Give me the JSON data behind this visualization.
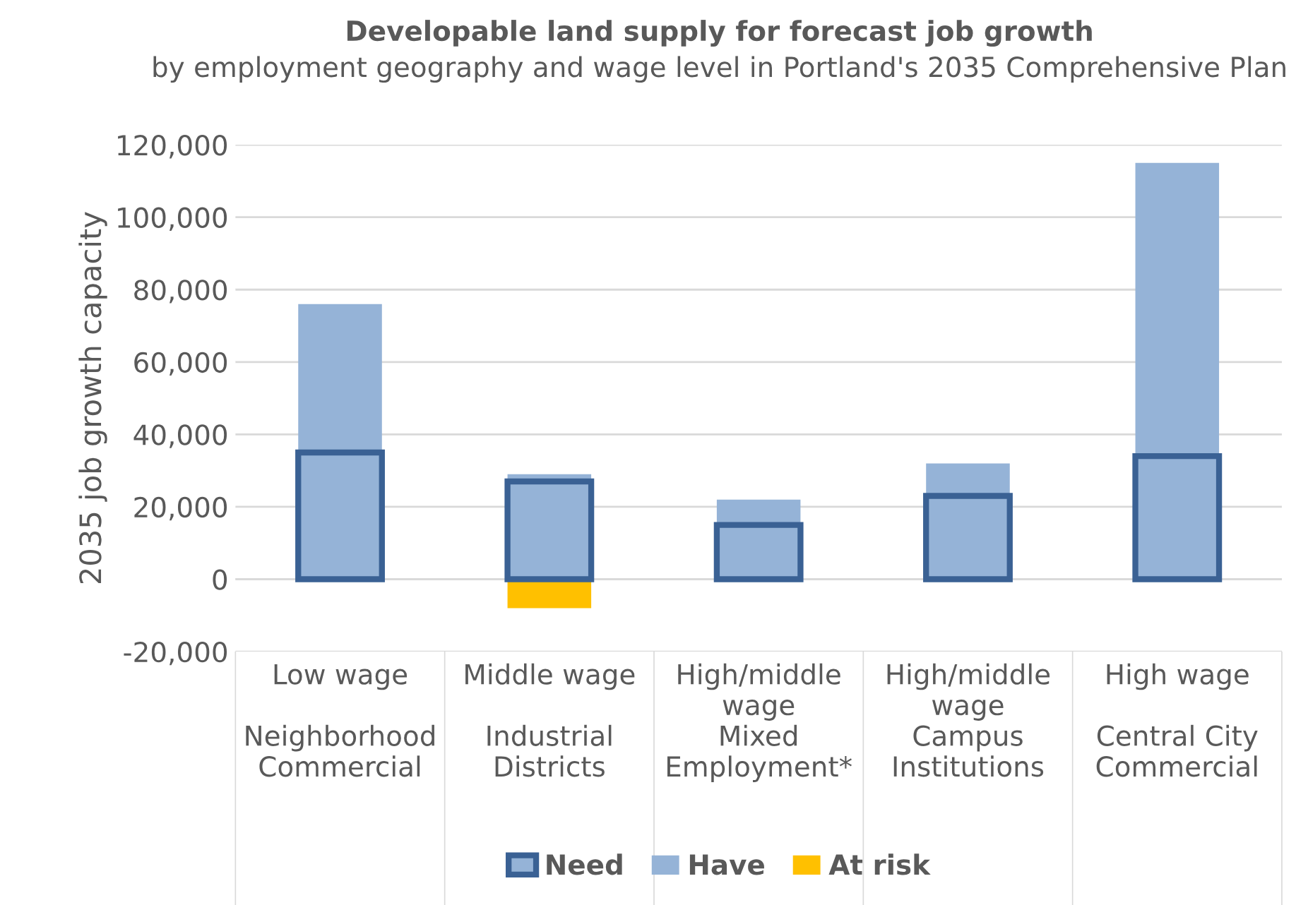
{
  "chart_data": {
    "type": "bar",
    "title": "Developable land supply for forecast job growth",
    "subtitle": "by employment geography and wage level in Portland's 2035 Comprehensive Plan",
    "ylabel": "2035 job growth capacity",
    "categories": [
      "Low wage\n\nNeighborhood\nCommercial",
      "Middle wage\n\nIndustrial\nDistricts",
      "High/middle\nwage\nMixed\nEmployment*",
      "High/middle\nwage\nCampus\nInstitutions",
      "High wage\n\nCentral City\nCommercial"
    ],
    "series": [
      {
        "name": "Need",
        "color": "#3a6194",
        "values": [
          35000,
          27000,
          15000,
          23000,
          34000
        ]
      },
      {
        "name": "Have",
        "color": "#95b3d7",
        "values": [
          76000,
          29000,
          22000,
          32000,
          115000
        ]
      },
      {
        "name": "At risk",
        "color": "#ffc000",
        "values": [
          null,
          -8000,
          null,
          null,
          null
        ]
      }
    ],
    "ylim": [
      -20000,
      120000
    ],
    "yticks": [
      {
        "value": -20000,
        "label": "-20,000"
      },
      0,
      {
        "value": 20000,
        "label": "20,000"
      },
      {
        "value": 40000,
        "label": "40,000"
      },
      {
        "value": 60000,
        "label": "60,000"
      },
      {
        "value": 80000,
        "label": "80,000"
      },
      {
        "value": 100000,
        "label": "100,000"
      },
      {
        "value": 120000,
        "label": "120,000"
      }
    ],
    "grid": "y",
    "legend": "bottom"
  }
}
